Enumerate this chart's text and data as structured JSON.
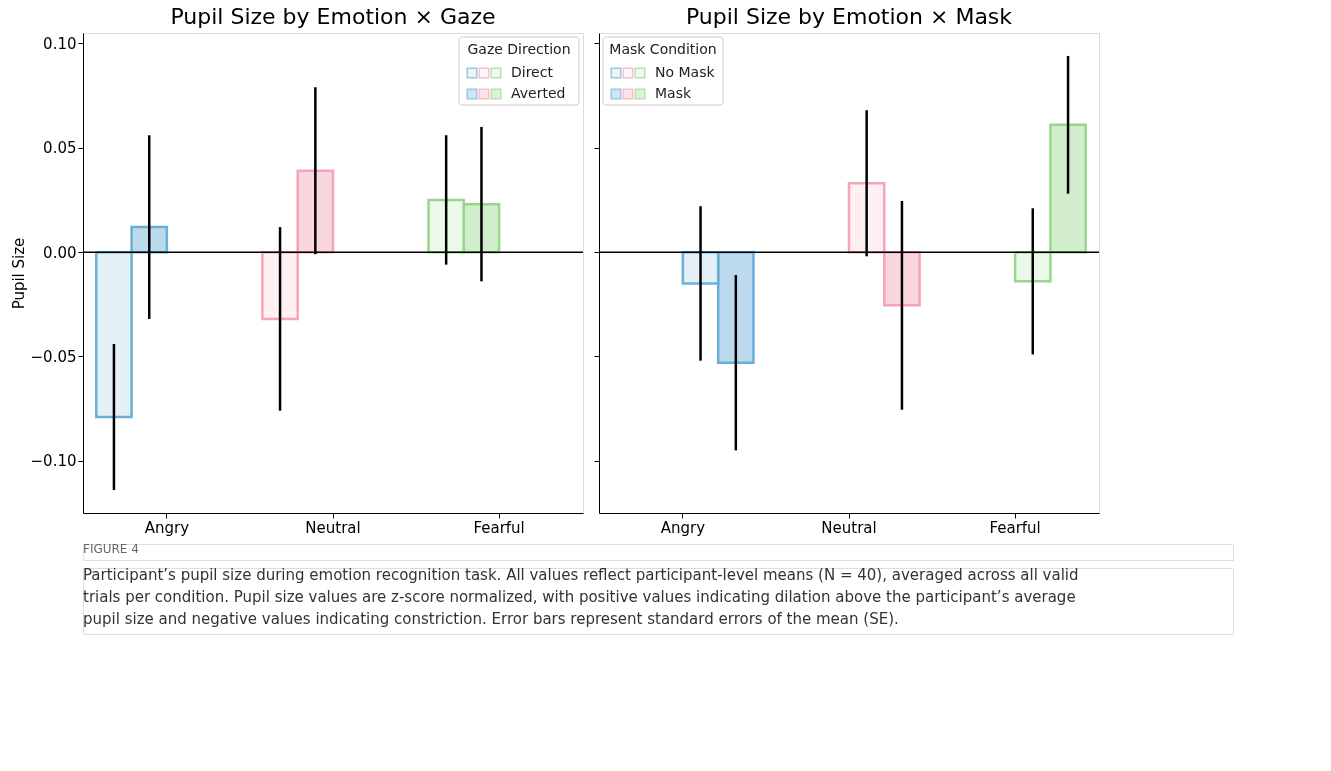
{
  "chart_data": [
    {
      "type": "bar",
      "title": "Pupil Size by Emotion × Gaze",
      "ylabel": "Pupil Size",
      "legend_title": "Gaze Direction",
      "legend": "top right",
      "grid": false,
      "categories": [
        "Angry",
        "Neutral",
        "Fearful"
      ],
      "ylim": [
        -0.125,
        0.105
      ],
      "yticks": [
        {
          "value": -0.1,
          "label": "−0.10"
        },
        {
          "value": -0.05,
          "label": "−0.05"
        },
        {
          "value": 0.0,
          "label": "0.00"
        },
        {
          "value": 0.05,
          "label": "0.05"
        },
        {
          "value": 0.1,
          "label": "0.10"
        }
      ],
      "series": [
        {
          "name": "Direct",
          "colors": [
            "#6baed6",
            "#f4a6b7",
            "#98d68c"
          ],
          "values": [
            -0.079,
            -0.032,
            0.025
          ],
          "errors": [
            0.035,
            0.044,
            0.031
          ]
        },
        {
          "name": "Averted",
          "colors": [
            "#6baed6",
            "#f4a6b7",
            "#98d68c"
          ],
          "values": [
            0.012,
            0.039,
            0.023
          ],
          "errors": [
            0.044,
            0.04,
            0.037
          ]
        }
      ],
      "ref_lines": [
        {
          "axis": "y",
          "value": 0,
          "color": "#000000"
        }
      ],
      "annotations": [
        "FIGURE 4",
        "Participant’s pupil size during emotion recognition task. All values reflect participant-level means (N = 40), averaged across all valid trials per condition. Pupil size values are z-score normalized, with positive values indicating dilation above the participant’s average pupil size and negative values indicating constriction. Error bars represent standard errors of the mean (SE)."
      ]
    },
    {
      "type": "bar",
      "title": "Pupil Size by Emotion × Mask",
      "legend_title": "Mask Condition",
      "legend": "top left",
      "grid": false,
      "tick_labels": "x",
      "categories": [
        "Angry",
        "Neutral",
        "Fearful"
      ],
      "ylim": [
        -0.125,
        0.105
      ],
      "yticks": [
        -0.1,
        -0.05,
        0.0,
        0.05,
        0.1
      ],
      "series": [
        {
          "name": "No Mask",
          "colors": [
            "#6baed6",
            "#f4a6b7",
            "#98d68c"
          ],
          "values": [
            -0.015,
            0.033,
            -0.014
          ],
          "errors": [
            0.037,
            0.035,
            0.035
          ]
        },
        {
          "name": "Mask",
          "colors": [
            "#6baed6",
            "#f4a6b7",
            "#98d68c"
          ],
          "values": [
            -0.053,
            -0.0255,
            0.061
          ],
          "errors": [
            0.042,
            0.05,
            0.033
          ]
        }
      ],
      "ref_lines": [
        {
          "axis": "y",
          "value": 0,
          "color": "#000000"
        }
      ]
    }
  ]
}
